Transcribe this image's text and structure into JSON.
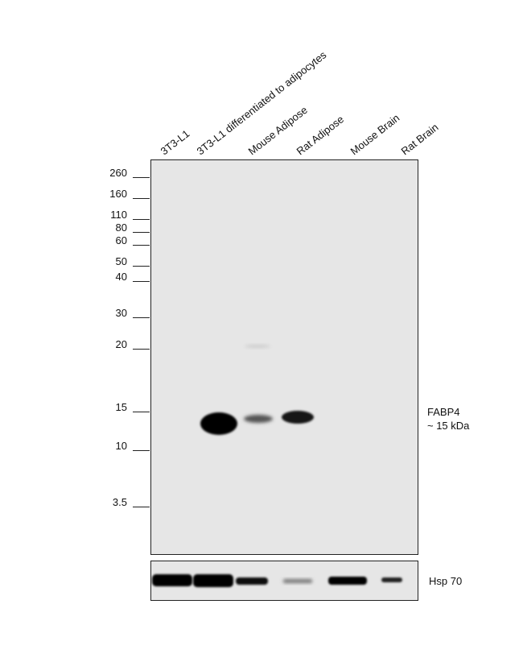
{
  "lanes": [
    "3T3-L1",
    "3T3-L1 differentiated to adipocytes",
    "Mouse Adipose",
    "Rat Adipose",
    "Mouse Brain",
    "Rat Brain"
  ],
  "markers": [
    "260",
    "160",
    "110",
    "80",
    "60",
    "50",
    "40",
    "30",
    "20",
    "15",
    "10",
    "3.5"
  ],
  "band_labels": {
    "target": "FABP4",
    "size": "~ 15 kDa",
    "loading_control": "Hsp 70"
  }
}
